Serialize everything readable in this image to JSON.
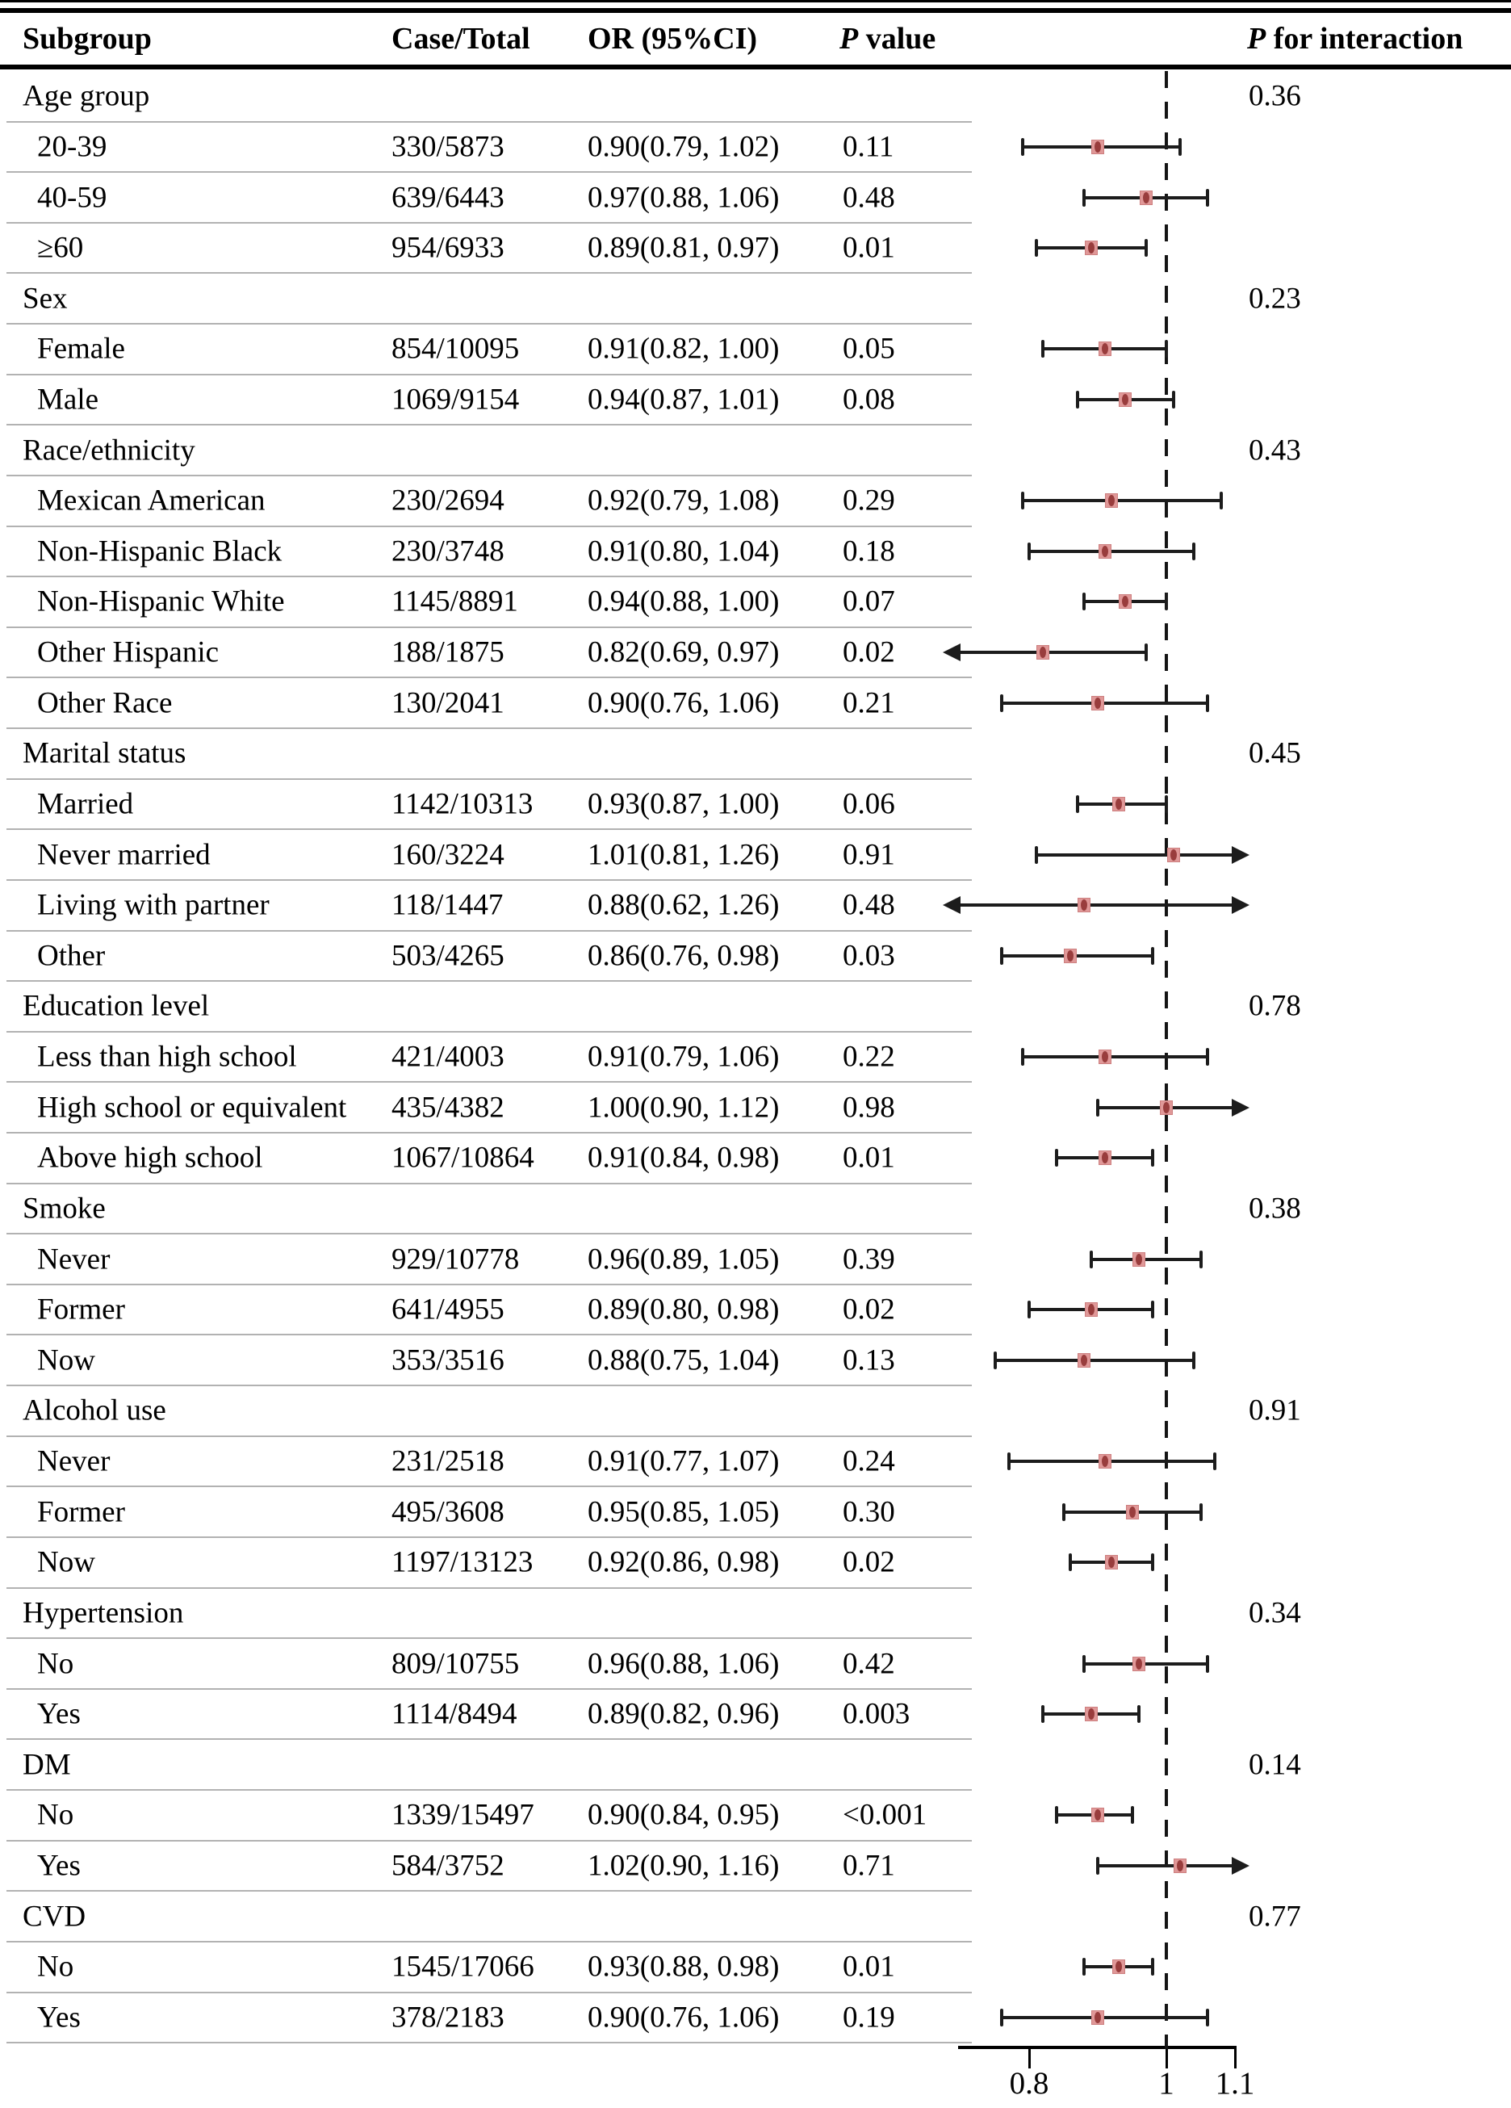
{
  "header": {
    "subgroup": "Subgroup",
    "case_total": "Case/Total",
    "or_ci": "OR (95%CI)",
    "p_value_italic": "P",
    "p_value_rest": " value",
    "p_interaction_italic": "P",
    "p_interaction_rest": " for interaction"
  },
  "colors": {
    "background": "#ffffff",
    "text": "#000000",
    "bar_line": "#1c1c1c",
    "marker_fill": "#e09898",
    "marker_edge": "#cd7f7f",
    "marker_core": "#993d3d",
    "row_separator": "#b2b2b2"
  },
  "axis": {
    "xlim": [
      0.7,
      1.1
    ],
    "ref_line": 1,
    "ticks": [
      0.8,
      1,
      1.1
    ],
    "tick_labels": [
      "0.8",
      "1",
      "1.1"
    ]
  },
  "chart_data": {
    "type": "forest",
    "title": "",
    "xlabel": "",
    "ref_line": 1,
    "xlim": [
      0.7,
      1.1
    ],
    "groups": [
      {
        "label": "Age group",
        "p_interaction": "0.36",
        "rows": [
          {
            "label": "20-39",
            "case_total": "330/5873",
            "or_ci": "0.90(0.79, 1.02)",
            "p": "0.11",
            "or": 0.9,
            "lo": 0.79,
            "hi": 1.02
          },
          {
            "label": "40-59",
            "case_total": "639/6443",
            "or_ci": "0.97(0.88, 1.06)",
            "p": "0.48",
            "or": 0.97,
            "lo": 0.88,
            "hi": 1.06
          },
          {
            "label": "≥60",
            "case_total": "954/6933",
            "or_ci": "0.89(0.81, 0.97)",
            "p": "0.01",
            "or": 0.89,
            "lo": 0.81,
            "hi": 0.97
          }
        ]
      },
      {
        "label": "Sex",
        "p_interaction": "0.23",
        "rows": [
          {
            "label": "Female",
            "case_total": "854/10095",
            "or_ci": "0.91(0.82, 1.00)",
            "p": "0.05",
            "or": 0.91,
            "lo": 0.82,
            "hi": 1.0
          },
          {
            "label": "Male",
            "case_total": "1069/9154",
            "or_ci": "0.94(0.87, 1.01)",
            "p": "0.08",
            "or": 0.94,
            "lo": 0.87,
            "hi": 1.01
          }
        ]
      },
      {
        "label": "Race/ethnicity",
        "p_interaction": "0.43",
        "rows": [
          {
            "label": "Mexican American",
            "case_total": "230/2694",
            "or_ci": "0.92(0.79, 1.08)",
            "p": "0.29",
            "or": 0.92,
            "lo": 0.79,
            "hi": 1.08
          },
          {
            "label": "Non-Hispanic Black",
            "case_total": "230/3748",
            "or_ci": "0.91(0.80, 1.04)",
            "p": "0.18",
            "or": 0.91,
            "lo": 0.8,
            "hi": 1.04
          },
          {
            "label": "Non-Hispanic White",
            "case_total": "1145/8891",
            "or_ci": "0.94(0.88, 1.00)",
            "p": "0.07",
            "or": 0.94,
            "lo": 0.88,
            "hi": 1.0
          },
          {
            "label": "Other Hispanic",
            "case_total": "188/1875",
            "or_ci": "0.82(0.69, 0.97)",
            "p": "0.02",
            "or": 0.82,
            "lo": 0.69,
            "hi": 0.97
          },
          {
            "label": "Other Race",
            "case_total": "130/2041",
            "or_ci": "0.90(0.76, 1.06)",
            "p": "0.21",
            "or": 0.9,
            "lo": 0.76,
            "hi": 1.06
          }
        ]
      },
      {
        "label": "Marital status",
        "p_interaction": "0.45",
        "rows": [
          {
            "label": "Married",
            "case_total": "1142/10313",
            "or_ci": "0.93(0.87, 1.00)",
            "p": "0.06",
            "or": 0.93,
            "lo": 0.87,
            "hi": 1.0
          },
          {
            "label": "Never married",
            "case_total": "160/3224",
            "or_ci": "1.01(0.81, 1.26)",
            "p": "0.91",
            "or": 1.01,
            "lo": 0.81,
            "hi": 1.26
          },
          {
            "label": "Living with partner",
            "case_total": "118/1447",
            "or_ci": "0.88(0.62, 1.26)",
            "p": "0.48",
            "or": 0.88,
            "lo": 0.62,
            "hi": 1.26
          },
          {
            "label": "Other",
            "case_total": "503/4265",
            "or_ci": "0.86(0.76, 0.98)",
            "p": "0.03",
            "or": 0.86,
            "lo": 0.76,
            "hi": 0.98
          }
        ]
      },
      {
        "label": "Education level",
        "p_interaction": "0.78",
        "rows": [
          {
            "label": "Less than high school",
            "case_total": "421/4003",
            "or_ci": "0.91(0.79, 1.06)",
            "p": "0.22",
            "or": 0.91,
            "lo": 0.79,
            "hi": 1.06
          },
          {
            "label": "High school or equivalent",
            "case_total": "435/4382",
            "or_ci": "1.00(0.90, 1.12)",
            "p": "0.98",
            "or": 1.0,
            "lo": 0.9,
            "hi": 1.12
          },
          {
            "label": "Above high school",
            "case_total": "1067/10864",
            "or_ci": "0.91(0.84, 0.98)",
            "p": "0.01",
            "or": 0.91,
            "lo": 0.84,
            "hi": 0.98
          }
        ]
      },
      {
        "label": "Smoke",
        "p_interaction": "0.38",
        "rows": [
          {
            "label": "Never",
            "case_total": "929/10778",
            "or_ci": "0.96(0.89, 1.05)",
            "p": "0.39",
            "or": 0.96,
            "lo": 0.89,
            "hi": 1.05
          },
          {
            "label": "Former",
            "case_total": "641/4955",
            "or_ci": "0.89(0.80, 0.98)",
            "p": "0.02",
            "or": 0.89,
            "lo": 0.8,
            "hi": 0.98
          },
          {
            "label": "Now",
            "case_total": "353/3516",
            "or_ci": "0.88(0.75, 1.04)",
            "p": "0.13",
            "or": 0.88,
            "lo": 0.75,
            "hi": 1.04
          }
        ]
      },
      {
        "label": "Alcohol use",
        "p_interaction": "0.91",
        "rows": [
          {
            "label": "Never",
            "case_total": "231/2518",
            "or_ci": "0.91(0.77, 1.07)",
            "p": "0.24",
            "or": 0.91,
            "lo": 0.77,
            "hi": 1.07
          },
          {
            "label": "Former",
            "case_total": "495/3608",
            "or_ci": "0.95(0.85, 1.05)",
            "p": "0.30",
            "or": 0.95,
            "lo": 0.85,
            "hi": 1.05
          },
          {
            "label": "Now",
            "case_total": "1197/13123",
            "or_ci": "0.92(0.86, 0.98)",
            "p": "0.02",
            "or": 0.92,
            "lo": 0.86,
            "hi": 0.98
          }
        ]
      },
      {
        "label": "Hypertension",
        "p_interaction": "0.34",
        "rows": [
          {
            "label": "No",
            "case_total": "809/10755",
            "or_ci": "0.96(0.88, 1.06)",
            "p": "0.42",
            "or": 0.96,
            "lo": 0.88,
            "hi": 1.06
          },
          {
            "label": "Yes",
            "case_total": "1114/8494",
            "or_ci": "0.89(0.82, 0.96)",
            "p": "0.003",
            "or": 0.89,
            "lo": 0.82,
            "hi": 0.96
          }
        ]
      },
      {
        "label": "DM",
        "p_interaction": "0.14",
        "rows": [
          {
            "label": "No",
            "case_total": "1339/15497",
            "or_ci": "0.90(0.84, 0.95)",
            "p": "<0.001",
            "or": 0.9,
            "lo": 0.84,
            "hi": 0.95
          },
          {
            "label": "Yes",
            "case_total": "584/3752",
            "or_ci": "1.02(0.90, 1.16)",
            "p": "0.71",
            "or": 1.02,
            "lo": 0.9,
            "hi": 1.16
          }
        ]
      },
      {
        "label": "CVD",
        "p_interaction": "0.77",
        "rows": [
          {
            "label": "No",
            "case_total": "1545/17066",
            "or_ci": "0.93(0.88, 0.98)",
            "p": "0.01",
            "or": 0.93,
            "lo": 0.88,
            "hi": 0.98
          },
          {
            "label": "Yes",
            "case_total": "378/2183",
            "or_ci": "0.90(0.76, 1.06)",
            "p": "0.19",
            "or": 0.9,
            "lo": 0.76,
            "hi": 1.06
          }
        ]
      }
    ]
  }
}
